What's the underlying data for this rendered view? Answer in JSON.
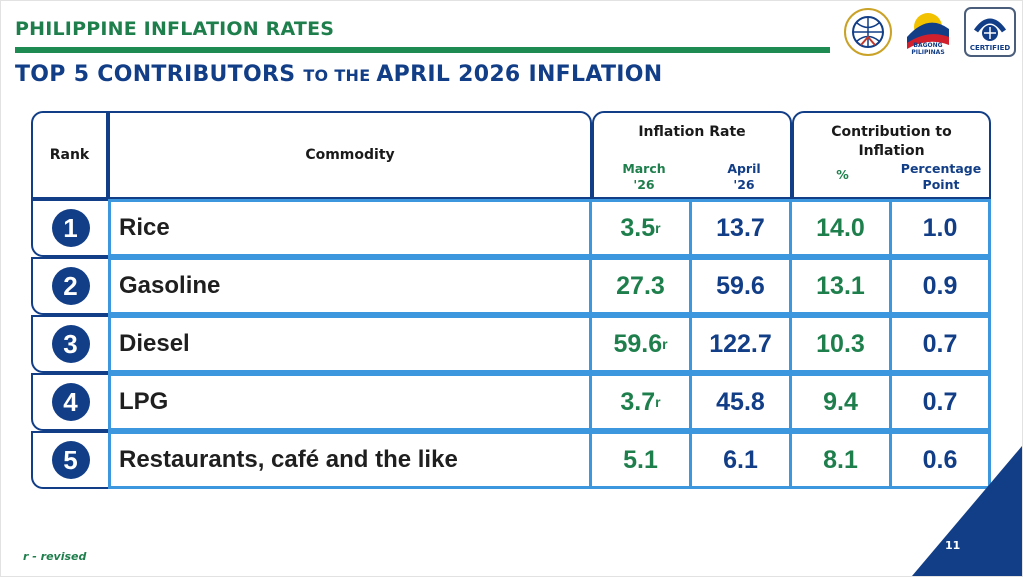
{
  "header": {
    "title": "PHILIPPINE INFLATION RATES",
    "subtitle_part1": "TOP 5 CONTRIBUTORS ",
    "subtitle_part2": "TO THE ",
    "subtitle_part3": "APRIL 2026 INFLATION"
  },
  "logos": {
    "bagong_pilipinas": "BAGONG PILIPINAS",
    "certified": "CERTIFIED"
  },
  "table": {
    "col_rank": "Rank",
    "col_commodity": "Commodity",
    "col_inflation": "Inflation Rate",
    "col_march_1": "March",
    "col_march_2": "'26",
    "col_april_1": "April",
    "col_april_2": "'26",
    "col_contribution_1": "Contribution to",
    "col_contribution_2": "Inflation",
    "col_pct": "%",
    "col_pp_1": "Percentage",
    "col_pp_2": "Point",
    "rows": [
      {
        "rank": "1",
        "commodity": "Rice",
        "march": "3.5",
        "march_sup": "r",
        "april": "13.7",
        "pct": "14.0",
        "pp": "1.0"
      },
      {
        "rank": "2",
        "commodity": "Gasoline",
        "march": "27.3",
        "march_sup": "",
        "april": "59.6",
        "pct": "13.1",
        "pp": "0.9"
      },
      {
        "rank": "3",
        "commodity": "Diesel",
        "march": "59.6",
        "march_sup": "r",
        "april": "122.7",
        "pct": "10.3",
        "pp": "0.7"
      },
      {
        "rank": "4",
        "commodity": "LPG",
        "march": "3.7",
        "march_sup": "r",
        "april": "45.8",
        "pct": "9.4",
        "pp": "0.7"
      },
      {
        "rank": "5",
        "commodity": "Restaurants, café and the like",
        "march": "5.1",
        "march_sup": "",
        "april": "6.1",
        "pct": "8.1",
        "pp": "0.6"
      }
    ]
  },
  "footnote": "r - revised",
  "page_number": "11",
  "colors": {
    "green": "#1e7f4c",
    "navy": "#123e87",
    "light_blue": "#3d97de"
  }
}
